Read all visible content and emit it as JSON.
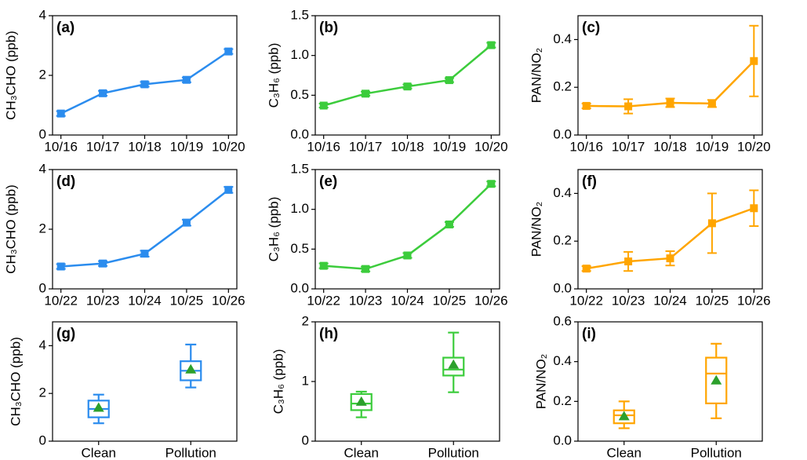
{
  "chart_data": [
    {
      "type": "line",
      "label": "(a)",
      "ylabel": "CH₃CHO (ppb)",
      "categories": [
        "10/16",
        "10/17",
        "10/18",
        "10/19",
        "10/20"
      ],
      "color": "#2b8cee",
      "values": [
        0.72,
        1.4,
        1.7,
        1.85,
        2.8
      ],
      "errors": [
        0.08,
        0.08,
        0.08,
        0.08,
        0.08
      ],
      "ylim": [
        0,
        4
      ],
      "yticks": [
        0,
        2,
        4
      ]
    },
    {
      "type": "line",
      "label": "(b)",
      "ylabel": "C₃H₆ (ppb)",
      "categories": [
        "10/16",
        "10/17",
        "10/18",
        "10/19",
        "10/20"
      ],
      "color": "#3ccc3c",
      "values": [
        0.37,
        0.52,
        0.61,
        0.69,
        1.13
      ],
      "errors": [
        0.025,
        0.025,
        0.025,
        0.025,
        0.03
      ],
      "ylim": [
        0,
        1.5
      ],
      "yticks": [
        {
          "value": 0,
          "label": "0.0"
        },
        0.5,
        {
          "value": 1,
          "label": "1.0"
        },
        1.5
      ]
    },
    {
      "type": "line",
      "label": "(c)",
      "ylabel": "PAN/NO₂",
      "categories": [
        "10/16",
        "10/17",
        "10/18",
        "10/19",
        "10/20"
      ],
      "color": "#ffa500",
      "values": [
        0.122,
        0.12,
        0.135,
        0.132,
        0.31
      ],
      "errors": [
        0.01,
        0.03,
        0.018,
        0.015,
        0.148
      ],
      "ylim": [
        0,
        0.5
      ],
      "yticks": [
        {
          "value": 0,
          "label": "0.0"
        },
        0.2,
        0.4
      ]
    },
    {
      "type": "line",
      "label": "(d)",
      "ylabel": "CH₃CHO (ppb)",
      "categories": [
        "10/22",
        "10/23",
        "10/24",
        "10/25",
        "10/26"
      ],
      "color": "#2b8cee",
      "values": [
        0.75,
        0.85,
        1.18,
        2.22,
        3.32
      ],
      "errors": [
        0.08,
        0.08,
        0.1,
        0.1,
        0.1
      ],
      "ylim": [
        0,
        4
      ],
      "yticks": [
        0,
        2,
        4
      ]
    },
    {
      "type": "line",
      "label": "(e)",
      "ylabel": "C₃H₆ (ppb)",
      "categories": [
        "10/22",
        "10/23",
        "10/24",
        "10/25",
        "10/26"
      ],
      "color": "#3ccc3c",
      "values": [
        0.29,
        0.25,
        0.42,
        0.81,
        1.32
      ],
      "errors": [
        0.03,
        0.03,
        0.03,
        0.03,
        0.03
      ],
      "ylim": [
        0,
        1.5
      ],
      "yticks": [
        {
          "value": 0,
          "label": "0.0"
        },
        0.5,
        {
          "value": 1,
          "label": "1.0"
        },
        1.5
      ]
    },
    {
      "type": "line",
      "label": "(f)",
      "ylabel": "PAN/NO₂",
      "categories": [
        "10/22",
        "10/23",
        "10/24",
        "10/25",
        "10/26"
      ],
      "color": "#ffa500",
      "values": [
        0.085,
        0.115,
        0.128,
        0.275,
        0.338
      ],
      "errors": [
        0.01,
        0.04,
        0.03,
        0.125,
        0.075
      ],
      "ylim": [
        0,
        0.5
      ],
      "yticks": [
        {
          "value": 0,
          "label": "0.0"
        },
        0.2,
        0.4
      ]
    },
    {
      "type": "box",
      "label": "(g)",
      "ylabel": "CH₃CHO (ppb)",
      "categories": [
        "Clean",
        "Pollution"
      ],
      "color": "#2b8cee",
      "mean_color": "#2ca02c",
      "boxes": [
        {
          "whislo": 0.75,
          "q1": 1.0,
          "med": 1.35,
          "q3": 1.7,
          "whishi": 1.95,
          "mean": 1.4
        },
        {
          "whislo": 2.25,
          "q1": 2.55,
          "med": 2.95,
          "q3": 3.35,
          "whishi": 4.05,
          "mean": 3.0
        }
      ],
      "ylim": [
        0,
        5
      ],
      "yticks": [
        0,
        2,
        4
      ]
    },
    {
      "type": "box",
      "label": "(h)",
      "ylabel": "C₃H₆ (ppb)",
      "categories": [
        "Clean",
        "Pollution"
      ],
      "color": "#3ccc3c",
      "mean_color": "#2ca02c",
      "boxes": [
        {
          "whislo": 0.4,
          "q1": 0.52,
          "med": 0.63,
          "q3": 0.79,
          "whishi": 0.83,
          "mean": 0.66
        },
        {
          "whislo": 0.82,
          "q1": 1.1,
          "med": 1.2,
          "q3": 1.4,
          "whishi": 1.82,
          "mean": 1.28
        }
      ],
      "ylim": [
        0,
        2
      ],
      "yticks": [
        0,
        1,
        2
      ]
    },
    {
      "type": "box",
      "label": "(i)",
      "ylabel": "PAN/NO₂",
      "categories": [
        "Clean",
        "Pollution"
      ],
      "color": "#ffa500",
      "mean_color": "#2ca02c",
      "boxes": [
        {
          "whislo": 0.065,
          "q1": 0.09,
          "med": 0.13,
          "q3": 0.155,
          "whishi": 0.2,
          "mean": 0.125
        },
        {
          "whislo": 0.115,
          "q1": 0.19,
          "med": 0.34,
          "q3": 0.42,
          "whishi": 0.49,
          "mean": 0.305
        }
      ],
      "ylim": [
        0,
        0.6
      ],
      "yticks": [
        {
          "value": 0,
          "label": "0.0"
        },
        0.2,
        0.4,
        0.6
      ]
    }
  ]
}
